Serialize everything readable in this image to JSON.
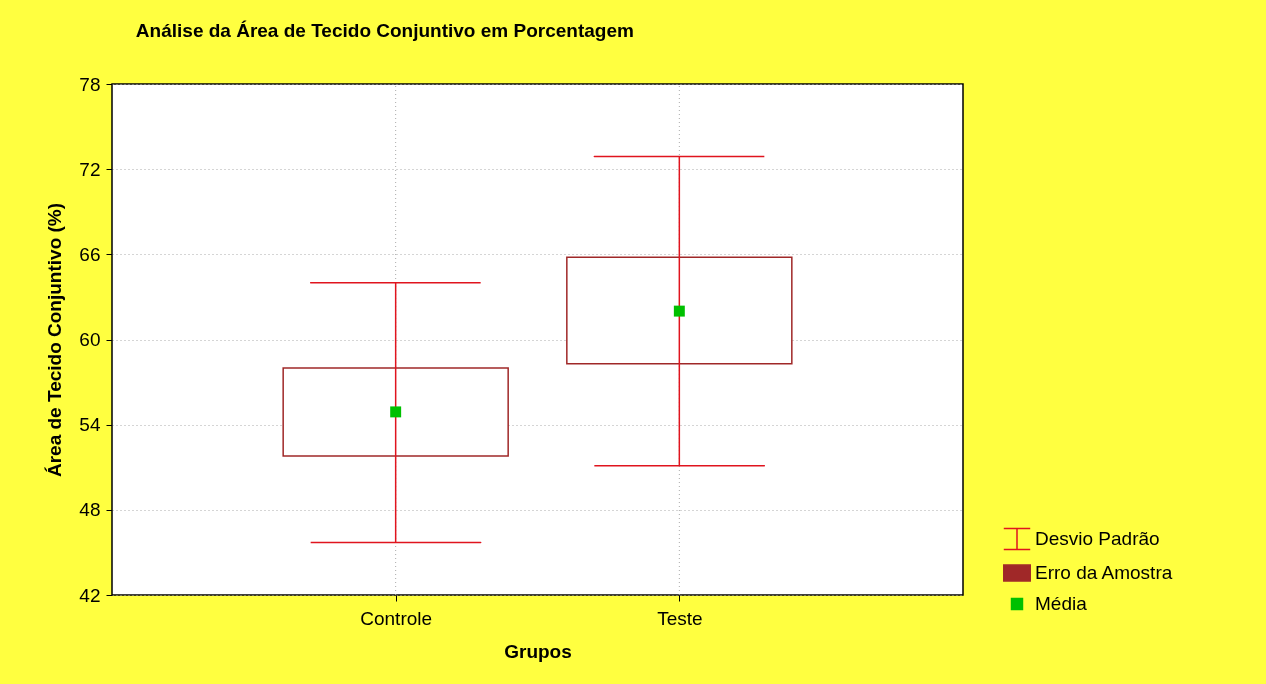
{
  "chart_data": {
    "type": "scatter",
    "title": "Análise da Área de Tecido Conjuntivo em Porcentagem",
    "xlabel": "Grupos",
    "ylabel": "Área de Tecido Conjuntivo (%)",
    "categories": [
      "Controle",
      "Teste"
    ],
    "ylim": [
      42,
      78
    ],
    "yticks": [
      42,
      48,
      54,
      60,
      66,
      72,
      78
    ],
    "grid": true,
    "legend": "bottom right",
    "series": [
      {
        "name": "Desvio Padrão",
        "marker": "none",
        "color": "#e0141e",
        "values": [
          null,
          null
        ]
      },
      {
        "name": "Erro da Amostra",
        "type": "bar",
        "color": "#a02828",
        "base": [
          51.8,
          58.3
        ],
        "values": [
          6.2,
          7.5
        ]
      },
      {
        "name": "Média",
        "marker": "square",
        "color": "#00c000",
        "values": [
          54.9,
          62.0
        ],
        "errors": [
          [
            45.7,
            64.0
          ],
          [
            51.1,
            72.9
          ]
        ]
      }
    ]
  }
}
